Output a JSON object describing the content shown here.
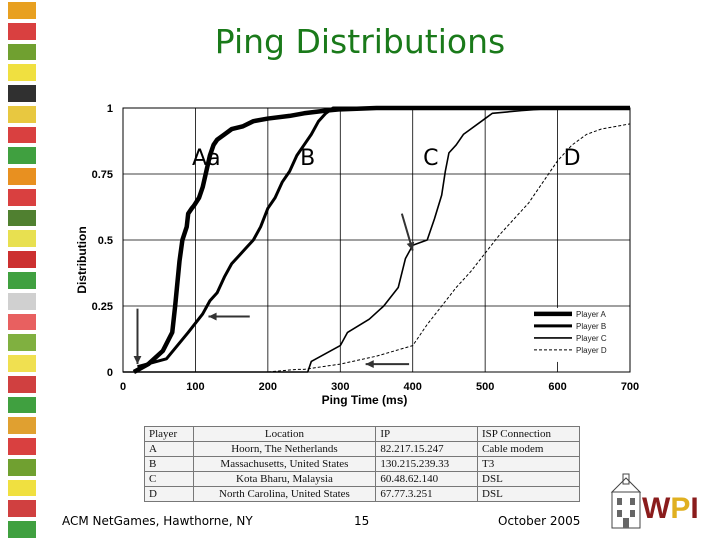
{
  "slide": {
    "title": "Ping Distributions",
    "footer_left": "ACM NetGames, Hawthorne, NY",
    "footer_center": "15",
    "footer_right": "October 2005",
    "stripe_colors": [
      "#e8a020",
      "#d94040",
      "#70a030",
      "#f0e040",
      "#303030",
      "#e8c840",
      "#d94040",
      "#40a040",
      "#e89020",
      "#d94040",
      "#508030",
      "#e8e050",
      "#cc3030",
      "#40a040",
      "#d0d0d0",
      "#e86060",
      "#80b040",
      "#f0e050",
      "#d04040",
      "#40a040",
      "#e0a030",
      "#d94040",
      "#70a030",
      "#f0e040",
      "#d04040",
      "#40a040"
    ]
  },
  "chart_data": {
    "type": "line",
    "xlabel": "Ping Time (ms)",
    "ylabel": "Distribution",
    "xlim": [
      0,
      700
    ],
    "ylim": [
      0,
      1
    ],
    "xticks": [
      "0",
      "100",
      "200",
      "300",
      "400",
      "500",
      "600",
      "700"
    ],
    "yticks": [
      "0",
      "0.25",
      "0.5",
      "0.75",
      "1"
    ],
    "grid": true,
    "legend_position": "bottom-right",
    "region_labels": [
      "Aa",
      "B",
      "C",
      "D"
    ],
    "series": [
      {
        "name": "Player A",
        "x": [
          15,
          35,
          55,
          68,
          72,
          78,
          82,
          88,
          90,
          95,
          98,
          105,
          110,
          115,
          120,
          125,
          130,
          140,
          150,
          165,
          180,
          200,
          230,
          250,
          280,
          300,
          350,
          400,
          450,
          500,
          550,
          600,
          700
        ],
        "y": [
          0,
          0.03,
          0.08,
          0.15,
          0.25,
          0.42,
          0.5,
          0.55,
          0.6,
          0.62,
          0.63,
          0.66,
          0.7,
          0.76,
          0.82,
          0.86,
          0.88,
          0.9,
          0.92,
          0.93,
          0.95,
          0.96,
          0.97,
          0.98,
          0.99,
          0.995,
          1,
          1,
          1,
          1,
          1,
          1,
          1
        ]
      },
      {
        "name": "Player B",
        "x": [
          20,
          60,
          90,
          110,
          120,
          130,
          140,
          150,
          160,
          170,
          180,
          190,
          200,
          210,
          220,
          230,
          240,
          250,
          260,
          270,
          280,
          290,
          300,
          320,
          350,
          380,
          400,
          450,
          500,
          550,
          700
        ],
        "y": [
          0.02,
          0.05,
          0.15,
          0.22,
          0.27,
          0.3,
          0.36,
          0.41,
          0.44,
          0.47,
          0.5,
          0.55,
          0.62,
          0.66,
          0.72,
          0.76,
          0.82,
          0.86,
          0.9,
          0.95,
          0.98,
          1,
          1,
          1,
          1,
          1,
          1,
          1,
          1,
          1,
          1
        ]
      },
      {
        "name": "Player C",
        "x": [
          0,
          100,
          200,
          230,
          255,
          260,
          300,
          310,
          340,
          360,
          380,
          390,
          400,
          420,
          430,
          440,
          445,
          450,
          460,
          470,
          480,
          500,
          510,
          550,
          600,
          700
        ],
        "y": [
          0,
          0,
          0,
          0,
          0,
          0.04,
          0.1,
          0.15,
          0.2,
          0.25,
          0.32,
          0.43,
          0.48,
          0.5,
          0.58,
          0.67,
          0.76,
          0.83,
          0.86,
          0.9,
          0.92,
          0.96,
          0.98,
          0.99,
          1,
          1
        ]
      },
      {
        "name": "Player D",
        "x": [
          0,
          100,
          200,
          240,
          250,
          300,
          350,
          400,
          420,
          440,
          460,
          480,
          500,
          520,
          540,
          560,
          580,
          600,
          620,
          640,
          660,
          680,
          700
        ],
        "y": [
          0,
          0,
          0,
          0.01,
          0.01,
          0.03,
          0.06,
          0.1,
          0.18,
          0.25,
          0.32,
          0.38,
          0.45,
          0.52,
          0.58,
          0.64,
          0.72,
          0.8,
          0.86,
          0.9,
          0.92,
          0.93,
          0.94
        ]
      }
    ]
  },
  "table": {
    "headers": [
      "Player",
      "Location",
      "IP",
      "ISP Connection"
    ],
    "rows": [
      [
        "A",
        "Hoorn, The Netherlands",
        "82.217.15.247",
        "Cable modem"
      ],
      [
        "B",
        "Massachusetts, United States",
        "130.215.239.33",
        "T3"
      ],
      [
        "C",
        "Kota Bharu, Malaysia",
        "60.48.62.140",
        "DSL"
      ],
      [
        "D",
        "North Carolina, United States",
        "67.77.3.251",
        "DSL"
      ]
    ]
  },
  "logo": {
    "text": "WPI",
    "colors": {
      "w": "#8a1c1c",
      "p": "#e0b020",
      "i": "#8a1c1c"
    }
  }
}
